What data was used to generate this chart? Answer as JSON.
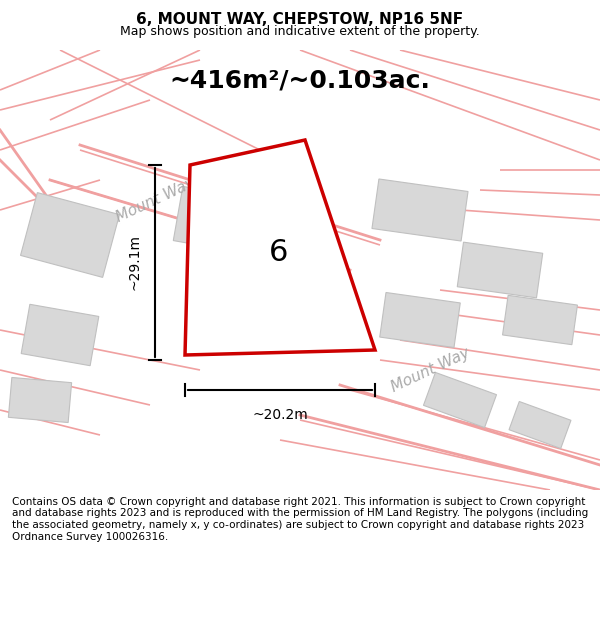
{
  "title": "6, MOUNT WAY, CHEPSTOW, NP16 5NF",
  "subtitle": "Map shows position and indicative extent of the property.",
  "area_text": "~416m²/~0.103ac.",
  "footer": "Contains OS data © Crown copyright and database right 2021. This information is subject to Crown copyright and database rights 2023 and is reproduced with the permission of HM Land Registry. The polygons (including the associated geometry, namely x, y co-ordinates) are subject to Crown copyright and database rights 2023 Ordnance Survey 100026316.",
  "bg_color": "#ffffff",
  "map_bg": "#f7f7f7",
  "plot_color": "#cc0000",
  "road_color": "#f0a0a0",
  "building_color": "#d8d8d8",
  "building_edge": "#c0c0c0",
  "dim_color": "#000000",
  "label_29": "~29.1m",
  "label_20": "~20.2m",
  "road_label": "Mount Way"
}
